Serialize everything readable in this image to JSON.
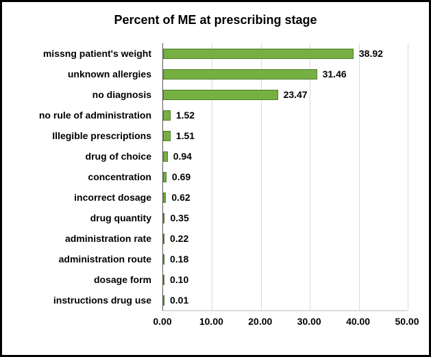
{
  "chart_data": {
    "type": "bar",
    "orientation": "horizontal",
    "title": "Percent of ME at prescribing stage",
    "categories": [
      "missng patient's weight",
      "unknown allergies",
      "no diagnosis",
      "no rule of administration",
      "Illegible prescriptions",
      "drug of choice",
      "concentration",
      "incorrect dosage",
      "drug quantity",
      "administration rate",
      "administration route",
      "dosage form",
      "instructions drug use"
    ],
    "values": [
      38.92,
      31.46,
      23.47,
      1.52,
      1.51,
      0.94,
      0.69,
      0.62,
      0.35,
      0.22,
      0.18,
      0.1,
      0.01
    ],
    "value_labels": [
      "38.92",
      "31.46",
      "23.47",
      "1.52",
      "1.51",
      "0.94",
      "0.69",
      "0.62",
      "0.35",
      "0.22",
      "0.18",
      "0.10",
      "0.01"
    ],
    "x_ticks": [
      "0.00",
      "10.00",
      "20.00",
      "30.00",
      "40.00",
      "50.00"
    ],
    "xlim": [
      0,
      50
    ],
    "xlabel": "",
    "ylabel": "",
    "grid": true,
    "legend_position": "none",
    "bar_color": "#76b043",
    "bar_border_color": "#4e7a28",
    "gridline_color": "#d9d9d9",
    "frame_border_color": "#000000"
  }
}
